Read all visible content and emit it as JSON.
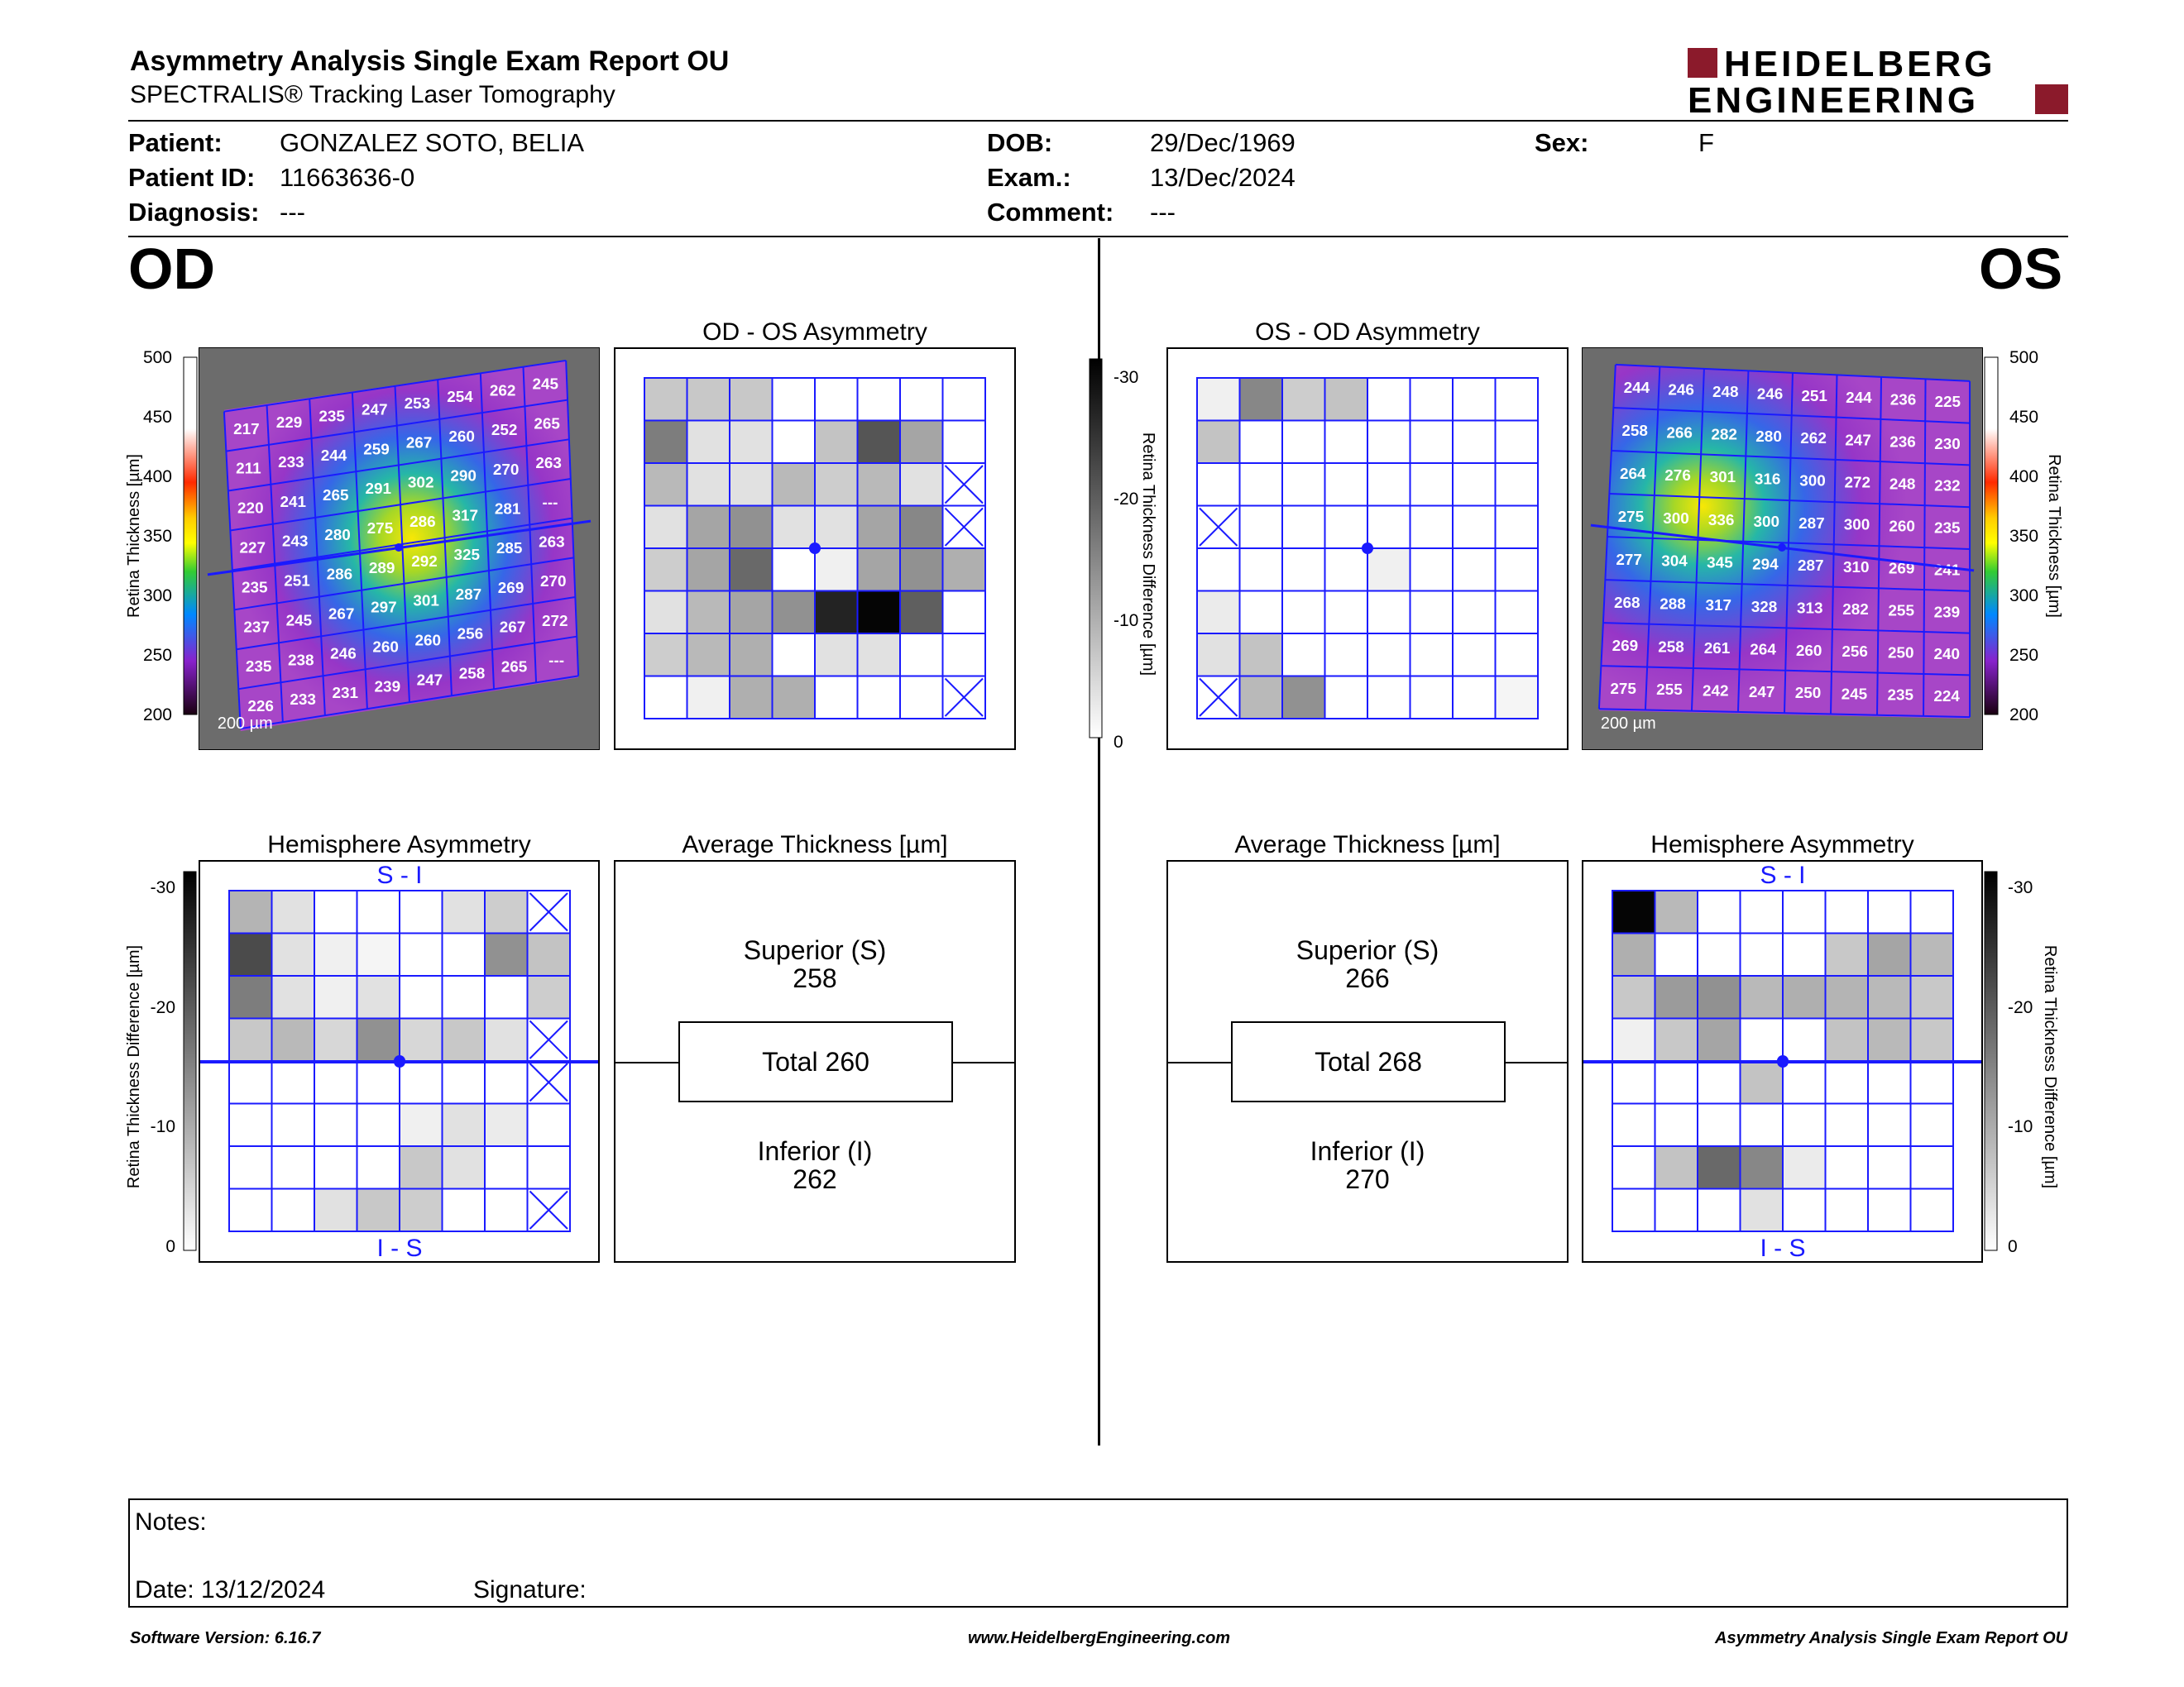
{
  "header": {
    "title": "Asymmetry Analysis Single Exam Report OU",
    "subtitle": "SPECTRALIS® Tracking Laser Tomography",
    "logo_line1": "HEIDELBERG",
    "logo_line2": "ENGINEERING"
  },
  "patient": {
    "patient_label": "Patient:",
    "patient_value": "GONZALEZ SOTO, BELIA",
    "id_label": "Patient ID:",
    "id_value": "11663636-0",
    "diagnosis_label": "Diagnosis:",
    "diagnosis_value": "---",
    "dob_label": "DOB:",
    "dob_value": "29/Dec/1969",
    "exam_label": "Exam.:",
    "exam_value": "13/Dec/2024",
    "comment_label": "Comment:",
    "comment_value": "---",
    "sex_label": "Sex:",
    "sex_value": "F"
  },
  "od": {
    "eye_label": "OD",
    "asym_title": "OD - OS Asymmetry",
    "hemi_title": "Hemisphere Asymmetry",
    "avg_title": "Average Thickness [µm]",
    "superior_label": "Superior (S)",
    "superior_value": "258",
    "total_label": "Total 260",
    "inferior_label": "Inferior (I)",
    "inferior_value": "262",
    "hemi_top": "S - I",
    "hemi_bottom": "I - S",
    "scale_bar": "200 µm",
    "thickness": [
      [
        217,
        229,
        235,
        247,
        253,
        254,
        262,
        245
      ],
      [
        211,
        233,
        244,
        259,
        267,
        260,
        252,
        265
      ],
      [
        220,
        241,
        265,
        291,
        302,
        290,
        270,
        263
      ],
      [
        227,
        243,
        280,
        275,
        286,
        317,
        281,
        "---"
      ],
      [
        235,
        251,
        286,
        289,
        292,
        325,
        285,
        263
      ],
      [
        237,
        245,
        267,
        297,
        301,
        287,
        269,
        270
      ],
      [
        235,
        238,
        246,
        260,
        260,
        256,
        267,
        272
      ],
      [
        226,
        233,
        231,
        239,
        247,
        258,
        265,
        "---"
      ]
    ],
    "asym_grid": [
      [
        55,
        55,
        55,
        0,
        0,
        0,
        0,
        0
      ],
      [
        130,
        30,
        30,
        0,
        60,
        170,
        90,
        0
      ],
      [
        70,
        30,
        30,
        70,
        50,
        70,
        30,
        -1
      ],
      [
        30,
        90,
        110,
        30,
        30,
        90,
        120,
        -2
      ],
      [
        50,
        90,
        150,
        0,
        15,
        90,
        110,
        80
      ],
      [
        30,
        70,
        90,
        110,
        220,
        250,
        160,
        0
      ],
      [
        50,
        70,
        80,
        0,
        30,
        30,
        0,
        0
      ],
      [
        0,
        15,
        80,
        80,
        0,
        0,
        0,
        -2
      ]
    ],
    "hemi_grid": [
      [
        75,
        30,
        0,
        0,
        0,
        30,
        50,
        -2
      ],
      [
        180,
        30,
        15,
        10,
        0,
        0,
        110,
        60
      ],
      [
        130,
        30,
        15,
        30,
        0,
        0,
        0,
        50
      ],
      [
        55,
        70,
        40,
        110,
        40,
        55,
        30,
        -2
      ],
      [
        0,
        0,
        0,
        0,
        0,
        0,
        0,
        -2
      ],
      [
        0,
        0,
        0,
        0,
        15,
        30,
        20,
        0
      ],
      [
        0,
        0,
        0,
        0,
        55,
        30,
        0,
        0
      ],
      [
        0,
        0,
        30,
        55,
        50,
        0,
        0,
        -2
      ]
    ]
  },
  "os": {
    "eye_label": "OS",
    "asym_title": "OS - OD Asymmetry",
    "hemi_title": "Hemisphere Asymmetry",
    "avg_title": "Average Thickness [µm]",
    "superior_label": "Superior (S)",
    "superior_value": "266",
    "total_label": "Total 268",
    "inferior_label": "Inferior (I)",
    "inferior_value": "270",
    "hemi_top": "S - I",
    "hemi_bottom": "I - S",
    "scale_bar": "200 µm",
    "thickness": [
      [
        244,
        246,
        248,
        246,
        251,
        244,
        236,
        225
      ],
      [
        258,
        266,
        282,
        280,
        262,
        247,
        236,
        230
      ],
      [
        264,
        276,
        301,
        316,
        300,
        272,
        248,
        232
      ],
      [
        275,
        300,
        336,
        300,
        287,
        300,
        260,
        235
      ],
      [
        277,
        304,
        345,
        294,
        287,
        310,
        269,
        241
      ],
      [
        268,
        288,
        317,
        328,
        313,
        282,
        255,
        239
      ],
      [
        269,
        258,
        261,
        264,
        260,
        256,
        250,
        240
      ],
      [
        275,
        255,
        242,
        247,
        250,
        245,
        235,
        224
      ]
    ],
    "asym_grid": [
      [
        15,
        120,
        50,
        60,
        0,
        0,
        0,
        0
      ],
      [
        60,
        0,
        0,
        0,
        0,
        0,
        0,
        0
      ],
      [
        0,
        0,
        0,
        0,
        0,
        0,
        0,
        0
      ],
      [
        -2,
        0,
        0,
        0,
        0,
        0,
        0,
        0
      ],
      [
        0,
        0,
        0,
        0,
        15,
        0,
        0,
        0
      ],
      [
        20,
        0,
        0,
        0,
        0,
        0,
        0,
        0
      ],
      [
        30,
        60,
        0,
        0,
        0,
        0,
        0,
        0
      ],
      [
        -2,
        70,
        110,
        0,
        0,
        0,
        0,
        10
      ]
    ],
    "hemi_grid": [
      [
        250,
        70,
        0,
        0,
        0,
        0,
        0,
        0
      ],
      [
        80,
        0,
        0,
        0,
        0,
        55,
        90,
        70
      ],
      [
        55,
        100,
        110,
        70,
        80,
        75,
        70,
        55
      ],
      [
        15,
        55,
        90,
        0,
        0,
        60,
        70,
        55
      ],
      [
        0,
        0,
        0,
        60,
        0,
        0,
        0,
        0
      ],
      [
        0,
        0,
        0,
        0,
        0,
        0,
        0,
        0
      ],
      [
        0,
        60,
        150,
        120,
        20,
        0,
        0,
        0
      ],
      [
        0,
        0,
        0,
        30,
        0,
        0,
        0,
        0
      ]
    ]
  },
  "scales": {
    "thickness_label": "Retina Thickness [µm]",
    "thickness_ticks": [
      "500",
      "450",
      "400",
      "350",
      "300",
      "250",
      "200"
    ],
    "diff_label": "Retina Thickness Difference [µm]",
    "diff_ticks": [
      "-30",
      "-20",
      "-10",
      "0"
    ]
  },
  "notes": {
    "notes_label": "Notes:",
    "date_label": "Date: 13/12/2024",
    "signature_label": "Signature:"
  },
  "footer": {
    "version": "Software Version: 6.16.7",
    "website": "www.HeidelbergEngineering.com",
    "report_name": "Asymmetry Analysis Single Exam Report OU"
  }
}
